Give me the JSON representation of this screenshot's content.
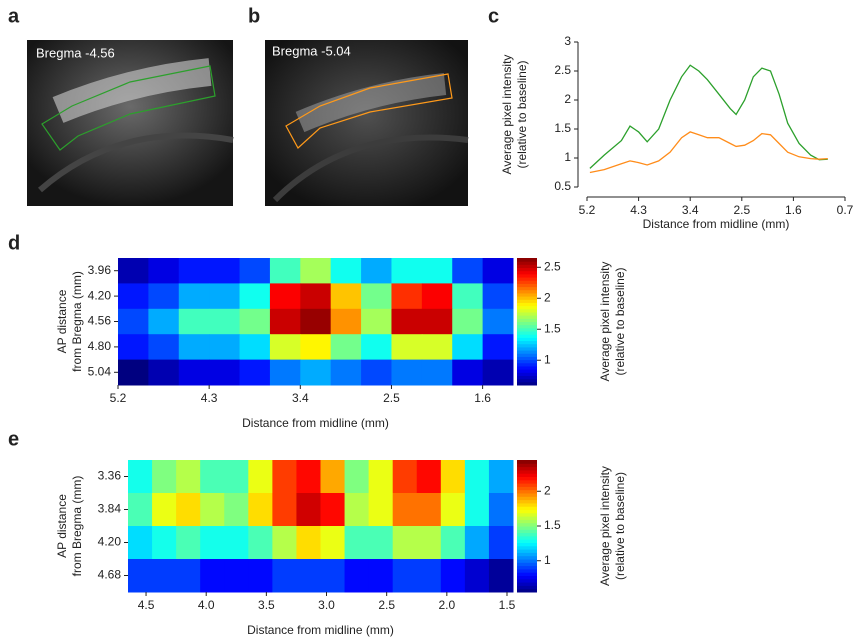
{
  "panels": [
    {
      "letter": "a",
      "label": "Bregma -4.56"
    },
    {
      "letter": "b",
      "label": "Bregma -5.04"
    }
  ],
  "chart_data": [
    {
      "type": "line",
      "panel": "c",
      "ylabel": [
        "Average pixel intensity",
        "(relative to baseline)"
      ],
      "xlabel": "Distance from midline (mm)",
      "xlim": [
        5.2,
        0.7
      ],
      "xticks": [
        5.2,
        4.3,
        3.4,
        2.5,
        1.6,
        0.7
      ],
      "ylim": [
        0.5,
        3
      ],
      "yticks": [
        0.5,
        1,
        1.5,
        2,
        2.5,
        3
      ],
      "x": [
        5.15,
        4.9,
        4.6,
        4.45,
        4.3,
        4.15,
        3.95,
        3.75,
        3.55,
        3.4,
        3.25,
        3.1,
        2.9,
        2.7,
        2.6,
        2.45,
        2.3,
        2.15,
        2.0,
        1.85,
        1.7,
        1.5,
        1.3,
        1.15,
        1.0
      ],
      "series": [
        {
          "color": "#2ca02c",
          "values": [
            0.82,
            1.05,
            1.3,
            1.55,
            1.45,
            1.28,
            1.5,
            2.0,
            2.4,
            2.6,
            2.5,
            2.35,
            2.1,
            1.85,
            1.75,
            2.0,
            2.4,
            2.55,
            2.5,
            2.1,
            1.6,
            1.25,
            1.05,
            0.97,
            0.98
          ]
        },
        {
          "color": "#ff8c1a",
          "values": [
            0.75,
            0.8,
            0.9,
            0.95,
            0.92,
            0.88,
            0.95,
            1.1,
            1.35,
            1.45,
            1.4,
            1.35,
            1.35,
            1.25,
            1.2,
            1.22,
            1.3,
            1.42,
            1.4,
            1.25,
            1.1,
            1.02,
            0.99,
            0.98,
            0.99
          ]
        }
      ]
    },
    {
      "type": "heatmap",
      "panel": "d",
      "ylabel": [
        "AP distance",
        "from Bregma (mm)"
      ],
      "xlabel": "Distance from midline (mm)",
      "colorbar_label": [
        "Average pixel intensity",
        "(relative to baseline)"
      ],
      "xlim": [
        5.2,
        1.3
      ],
      "xticks": [
        5.2,
        4.3,
        3.4,
        2.5,
        1.6
      ],
      "x": [
        5.05,
        4.75,
        4.45,
        4.15,
        3.85,
        3.55,
        3.25,
        2.95,
        2.65,
        2.35,
        2.05,
        1.75,
        1.45
      ],
      "rows": [
        "3.96",
        "4.20",
        "4.56",
        "4.80",
        "5.04"
      ],
      "zlim": [
        0.6,
        2.65
      ],
      "zticks": [
        1,
        1.5,
        2,
        2.5
      ],
      "values": [
        [
          0.7,
          0.8,
          0.9,
          0.9,
          1.0,
          1.5,
          1.7,
          1.4,
          1.2,
          1.4,
          1.4,
          1.0,
          0.8
        ],
        [
          0.9,
          1.0,
          1.2,
          1.2,
          1.4,
          2.4,
          2.5,
          2.0,
          1.6,
          2.3,
          2.4,
          1.5,
          1.0
        ],
        [
          1.0,
          1.2,
          1.5,
          1.5,
          1.6,
          2.5,
          2.6,
          2.1,
          1.7,
          2.5,
          2.5,
          1.6,
          1.1
        ],
        [
          0.9,
          1.0,
          1.2,
          1.2,
          1.3,
          1.8,
          1.9,
          1.6,
          1.4,
          1.8,
          1.8,
          1.3,
          0.9
        ],
        [
          0.6,
          0.7,
          0.8,
          0.8,
          0.9,
          1.1,
          1.2,
          1.1,
          1.0,
          1.1,
          1.1,
          0.8,
          0.7
        ]
      ]
    },
    {
      "type": "heatmap",
      "panel": "e",
      "ylabel": [
        "AP distance",
        "from Bregma (mm)"
      ],
      "xlabel": "Distance from midline (mm)",
      "colorbar_label": [
        "Average pixel intensity",
        "(relative to baseline)"
      ],
      "xlim": [
        4.65,
        1.45
      ],
      "xticks": [
        4.5,
        {
          "value": 4,
          "label": "4.0"
        },
        3.5,
        {
          "value": 3,
          "label": "3.0"
        },
        2.5,
        {
          "value": 2,
          "label": "2.0"
        },
        1.5
      ],
      "x": [
        4.55,
        4.35,
        4.15,
        3.95,
        3.75,
        3.55,
        3.35,
        3.15,
        2.95,
        2.75,
        2.55,
        2.35,
        2.15,
        1.95,
        1.75,
        1.55
      ],
      "rows": [
        "3.36",
        "3.84",
        "4.20",
        "4.68"
      ],
      "zlim": [
        0.55,
        2.45
      ],
      "zticks": [
        1,
        1.5,
        2
      ],
      "values": [
        [
          1.3,
          1.5,
          1.6,
          1.4,
          1.4,
          1.7,
          2.1,
          2.2,
          1.9,
          1.5,
          1.7,
          2.1,
          2.2,
          1.8,
          1.3,
          1.1
        ],
        [
          1.4,
          1.7,
          1.8,
          1.6,
          1.5,
          1.8,
          2.1,
          2.3,
          2.2,
          1.6,
          1.7,
          2.0,
          2.0,
          1.7,
          1.3,
          1.0
        ],
        [
          1.2,
          1.3,
          1.4,
          1.3,
          1.3,
          1.4,
          1.6,
          1.8,
          1.7,
          1.4,
          1.4,
          1.6,
          1.6,
          1.4,
          1.1,
          0.9
        ],
        [
          0.9,
          0.9,
          0.9,
          0.8,
          0.8,
          0.8,
          0.9,
          0.9,
          0.9,
          0.8,
          0.8,
          0.9,
          0.9,
          0.8,
          0.7,
          0.6
        ]
      ]
    }
  ]
}
